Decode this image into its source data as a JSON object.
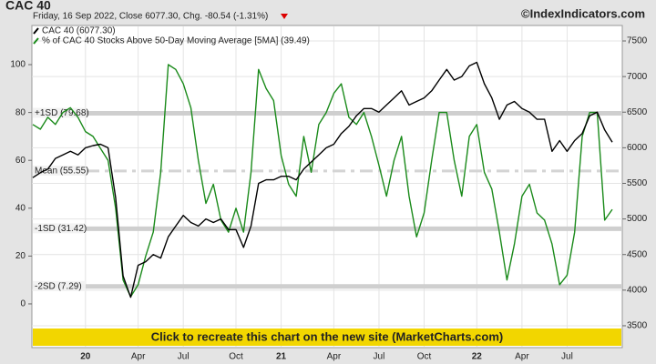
{
  "chart_data": {
    "type": "line",
    "title": "CAC 40",
    "subtitle": "Friday, 16 Sep 2022, Close 6077.30, Chg. -80.54 (-1.31%)",
    "source": "©IndexIndicators.com",
    "banner": "Click to recreate this chart on the new site (MarketCharts.com)",
    "categories": [
      null,
      null,
      null,
      null,
      null,
      null,
      null,
      "20",
      null,
      null,
      null,
      null,
      null,
      null,
      "Apr",
      null,
      null,
      null,
      null,
      null,
      "Jul",
      null,
      null,
      null,
      null,
      null,
      null,
      "Oct",
      null,
      null,
      null,
      null,
      null,
      "21",
      null,
      null,
      null,
      null,
      null,
      null,
      "Apr",
      null,
      null,
      null,
      null,
      null,
      "Jul",
      null,
      null,
      null,
      null,
      null,
      "Oct",
      null,
      null,
      null,
      null,
      null,
      null,
      "22",
      null,
      null,
      null,
      null,
      null,
      "Apr",
      null,
      null,
      null,
      null,
      null,
      "Jul",
      null,
      null,
      null,
      null,
      null,
      null
    ],
    "series": [
      {
        "name": "CAC 40 (6077.30)",
        "color": "#000000",
        "axis": "y2",
        "values": [
          5580,
          5650,
          5700,
          5850,
          5900,
          5950,
          5900,
          6000,
          6030,
          6050,
          6000,
          5300,
          4200,
          3900,
          4350,
          4400,
          4500,
          4450,
          4750,
          4900,
          5050,
          4950,
          4900,
          5000,
          4950,
          5000,
          4850,
          4850,
          4600,
          4900,
          5500,
          5550,
          5550,
          5600,
          5600,
          5550,
          5700,
          5800,
          5900,
          6000,
          6050,
          6200,
          6300,
          6450,
          6550,
          6550,
          6500,
          6600,
          6700,
          6800,
          6600,
          6650,
          6700,
          6800,
          6950,
          7100,
          6950,
          7000,
          7150,
          7200,
          6900,
          6700,
          6400,
          6600,
          6650,
          6550,
          6500,
          6400,
          6400,
          5950,
          6100,
          5950,
          6100,
          6200,
          6450,
          6500,
          6250,
          6077.3
        ]
      },
      {
        "name": "% of CAC 40 Stocks Above 50-Day Moving Average [5MA] (39.49)",
        "color": "#1a8a1a",
        "values": [
          75,
          73,
          78,
          75,
          80,
          82,
          78,
          72,
          70,
          65,
          60,
          40,
          10,
          3,
          8,
          20,
          30,
          55,
          100,
          98,
          92,
          82,
          60,
          42,
          50,
          35,
          30,
          40,
          30,
          55,
          98,
          90,
          85,
          62,
          50,
          45,
          70,
          55,
          75,
          80,
          88,
          92,
          78,
          75,
          80,
          70,
          58,
          45,
          60,
          70,
          45,
          28,
          38,
          60,
          80,
          80,
          60,
          45,
          70,
          75,
          55,
          48,
          30,
          10,
          25,
          45,
          50,
          38,
          35,
          25,
          8,
          12,
          30,
          70,
          80,
          80,
          35,
          39.49
        ]
      }
    ],
    "ylim": [
      -9.9,
      113.7
    ],
    "yticks": [
      0,
      20,
      40,
      60,
      80,
      100
    ],
    "y2lim": [
      3474,
      7628
    ],
    "y2ticks": [
      3500,
      4000,
      4500,
      5000,
      5500,
      6000,
      6500,
      7000,
      7500
    ],
    "reference_lines": [
      {
        "value": 79.68,
        "label": "+1SD (79.68)",
        "style": "solid"
      },
      {
        "value": 55.55,
        "label": "Mean (55.55)",
        "style": "dashed"
      },
      {
        "value": 31.42,
        "label": "-1SD (31.42)",
        "style": "solid"
      },
      {
        "value": 7.29,
        "label": "-2SD (7.29)",
        "style": "solid"
      }
    ],
    "grid": true
  }
}
